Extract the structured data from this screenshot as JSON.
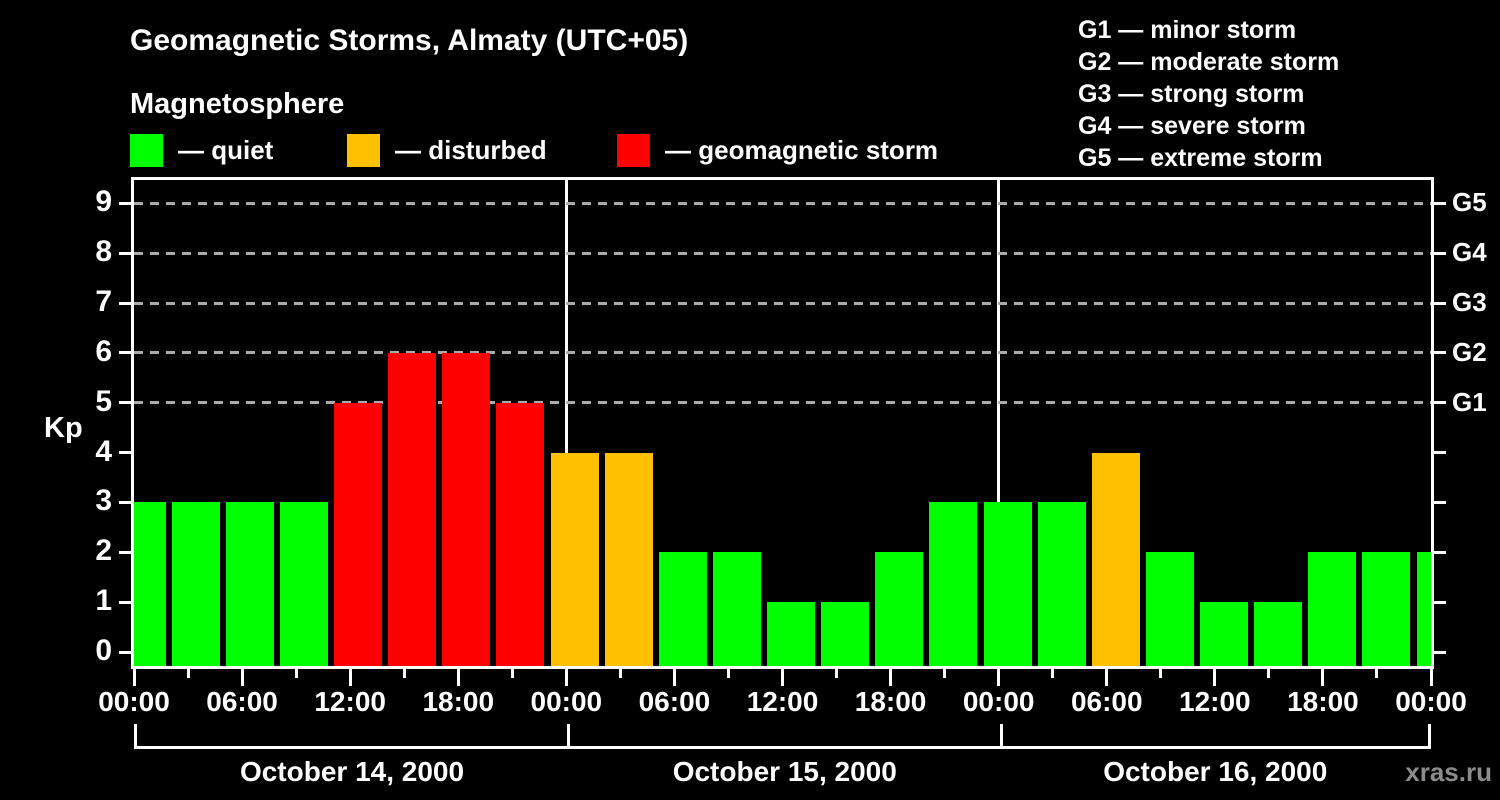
{
  "header": {
    "title": "Geomagnetic Storms, Almaty (UTC+05)",
    "subtitle": "Magnetosphere"
  },
  "legend": {
    "items": [
      {
        "name": "quiet",
        "label": "— quiet",
        "color": "#00ff00"
      },
      {
        "name": "disturbed",
        "label": "— disturbed",
        "color": "#ffc000"
      },
      {
        "name": "geomagnetic-storm",
        "label": "— geomagnetic storm",
        "color": "#ff0000"
      }
    ]
  },
  "g_legend": {
    "lines": [
      "G1 — minor storm",
      "G2 — moderate storm",
      "G3 — strong storm",
      "G4 — severe storm",
      "G5 — extreme storm"
    ]
  },
  "watermark": "xras.ru",
  "chart_data": {
    "type": "bar",
    "title": "Geomagnetic Storms, Almaty (UTC+05)",
    "ylabel": "Kp",
    "ylim": [
      0,
      9
    ],
    "yticks": [
      0,
      1,
      2,
      3,
      4,
      5,
      6,
      7,
      8,
      9
    ],
    "grid": "dashed horizontal lines at storm levels only",
    "grid_levels": [
      5,
      6,
      7,
      8,
      9
    ],
    "right_axis": [
      {
        "kp": 5,
        "label": "G1"
      },
      {
        "kp": 6,
        "label": "G2"
      },
      {
        "kp": 7,
        "label": "G3"
      },
      {
        "kp": 8,
        "label": "G4"
      },
      {
        "kp": 9,
        "label": "G5"
      }
    ],
    "x_tick_labels": [
      "00:00",
      "06:00",
      "12:00",
      "18:00",
      "00:00",
      "06:00",
      "12:00",
      "18:00",
      "00:00",
      "06:00",
      "12:00",
      "18:00",
      "00:00"
    ],
    "x_label_step_hours": 6,
    "x_minor_tick_hours": 3,
    "bar_interval_hours": 3,
    "days": [
      {
        "date": "October 14, 2000",
        "values": [
          3,
          3,
          3,
          3,
          5,
          6,
          6,
          5
        ]
      },
      {
        "date": "October 15, 2000",
        "values": [
          4,
          4,
          2,
          2,
          1,
          1,
          2,
          3
        ]
      },
      {
        "date": "October 16, 2000",
        "values": [
          3,
          3,
          4,
          2,
          1,
          1,
          2,
          2
        ]
      }
    ],
    "next_day_partial_value": 2,
    "colors": {
      "quiet": "#00ff00",
      "disturbed": "#ffc000",
      "storm": "#ff0000"
    },
    "color_thresholds": {
      "quiet_max": 3,
      "disturbed_max": 4
    },
    "legend_position": "top-left"
  }
}
